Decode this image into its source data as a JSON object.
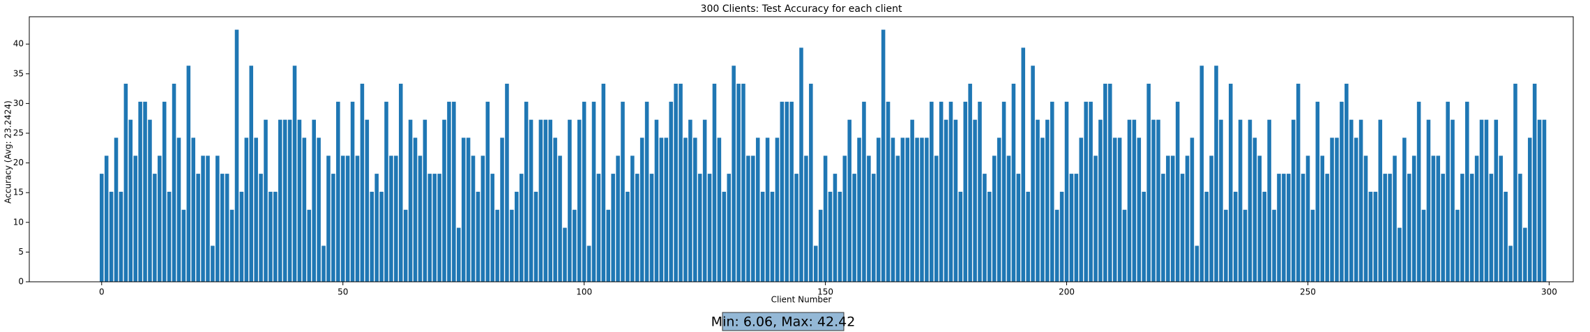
{
  "chart_data": {
    "type": "bar",
    "title": "300 Clients: Test Accuracy for each client",
    "x_label": "Client Number",
    "y_label": "Accuracy (Avg: 23.2424)",
    "annotation": "Min: 6.06, Max: 42.42",
    "color": "#1f77b4",
    "x": [
      0,
      1,
      2,
      3,
      4,
      5,
      6,
      7,
      8,
      9,
      10,
      11,
      12,
      13,
      14,
      15,
      16,
      17,
      18,
      19,
      20,
      21,
      22,
      23,
      24,
      25,
      26,
      27,
      28,
      29,
      30,
      31,
      32,
      33,
      34,
      35,
      36,
      37,
      38,
      39,
      40,
      41,
      42,
      43,
      44,
      45,
      46,
      47,
      48,
      49,
      50,
      51,
      52,
      53,
      54,
      55,
      56,
      57,
      58,
      59,
      60,
      61,
      62,
      63,
      64,
      65,
      66,
      67,
      68,
      69,
      70,
      71,
      72,
      73,
      74,
      75,
      76,
      77,
      78,
      79,
      80,
      81,
      82,
      83,
      84,
      85,
      86,
      87,
      88,
      89,
      90,
      91,
      92,
      93,
      94,
      95,
      96,
      97,
      98,
      99,
      100,
      101,
      102,
      103,
      104,
      105,
      106,
      107,
      108,
      109,
      110,
      111,
      112,
      113,
      114,
      115,
      116,
      117,
      118,
      119,
      120,
      121,
      122,
      123,
      124,
      125,
      126,
      127,
      128,
      129,
      130,
      131,
      132,
      133,
      134,
      135,
      136,
      137,
      138,
      139,
      140,
      141,
      142,
      143,
      144,
      145,
      146,
      147,
      148,
      149,
      150,
      151,
      152,
      153,
      154,
      155,
      156,
      157,
      158,
      159,
      160,
      161,
      162,
      163,
      164,
      165,
      166,
      167,
      168,
      169,
      170,
      171,
      172,
      173,
      174,
      175,
      176,
      177,
      178,
      179,
      180,
      181,
      182,
      183,
      184,
      185,
      186,
      187,
      188,
      189,
      190,
      191,
      192,
      193,
      194,
      195,
      196,
      197,
      198,
      199,
      200,
      201,
      202,
      203,
      204,
      205,
      206,
      207,
      208,
      209,
      210,
      211,
      212,
      213,
      214,
      215,
      216,
      217,
      218,
      219,
      220,
      221,
      222,
      223,
      224,
      225,
      226,
      227,
      228,
      229,
      230,
      231,
      232,
      233,
      234,
      235,
      236,
      237,
      238,
      239,
      240,
      241,
      242,
      243,
      244,
      245,
      246,
      247,
      248,
      249,
      250,
      251,
      252,
      253,
      254,
      255,
      256,
      257,
      258,
      259,
      260,
      261,
      262,
      263,
      264,
      265,
      266,
      267,
      268,
      269,
      270,
      271,
      272,
      273,
      274,
      275,
      276,
      277,
      278,
      279,
      280,
      281,
      282,
      283,
      284,
      285,
      286,
      287,
      288,
      289,
      290,
      291,
      292,
      293,
      294,
      295,
      296,
      297,
      298,
      299
    ],
    "values": [
      18.18,
      21.21,
      15.15,
      24.24,
      15.15,
      33.33,
      27.27,
      21.21,
      30.3,
      30.3,
      27.27,
      18.18,
      21.21,
      30.3,
      15.15,
      33.33,
      24.24,
      12.12,
      36.36,
      24.24,
      18.18,
      21.21,
      21.21,
      6.06,
      21.21,
      18.18,
      18.18,
      12.12,
      42.42,
      15.15,
      24.24,
      36.36,
      24.24,
      18.18,
      27.27,
      15.15,
      15.15,
      27.27,
      27.27,
      27.27,
      36.36,
      27.27,
      24.24,
      12.12,
      27.27,
      24.24,
      6.06,
      21.21,
      18.18,
      30.3,
      21.21,
      21.21,
      30.3,
      21.21,
      33.33,
      27.27,
      15.15,
      18.18,
      15.15,
      30.3,
      21.21,
      21.21,
      33.33,
      12.12,
      27.27,
      24.24,
      21.21,
      27.27,
      18.18,
      18.18,
      18.18,
      27.27,
      30.3,
      30.3,
      9.09,
      24.24,
      24.24,
      21.21,
      15.15,
      21.21,
      30.3,
      18.18,
      12.12,
      24.24,
      33.33,
      12.12,
      15.15,
      18.18,
      30.3,
      27.27,
      15.15,
      27.27,
      27.27,
      27.27,
      24.24,
      21.21,
      9.09,
      27.27,
      12.12,
      27.27,
      30.3,
      6.06,
      30.3,
      18.18,
      33.33,
      12.12,
      18.18,
      21.21,
      30.3,
      15.15,
      21.21,
      18.18,
      24.24,
      30.3,
      18.18,
      27.27,
      24.24,
      24.24,
      30.3,
      33.33,
      33.33,
      24.24,
      27.27,
      24.24,
      18.18,
      27.27,
      18.18,
      33.33,
      24.24,
      15.15,
      18.18,
      36.36,
      33.33,
      33.33,
      21.21,
      21.21,
      24.24,
      15.15,
      24.24,
      15.15,
      24.24,
      30.3,
      30.3,
      30.3,
      18.18,
      39.39,
      21.21,
      33.33,
      6.06,
      12.12,
      21.21,
      15.15,
      18.18,
      15.15,
      21.21,
      27.27,
      18.18,
      24.24,
      30.3,
      21.21,
      18.18,
      24.24,
      42.42,
      30.3,
      24.24,
      21.21,
      24.24,
      24.24,
      27.27,
      24.24,
      24.24,
      24.24,
      30.3,
      21.21,
      30.3,
      27.27,
      30.3,
      27.27,
      15.15,
      30.3,
      33.33,
      27.27,
      30.3,
      18.18,
      15.15,
      21.21,
      24.24,
      30.3,
      21.21,
      33.33,
      18.18,
      39.39,
      15.15,
      36.36,
      27.27,
      24.24,
      27.27,
      30.3,
      12.12,
      15.15,
      30.3,
      18.18,
      18.18,
      24.24,
      30.3,
      30.3,
      21.21,
      27.27,
      33.33,
      33.33,
      24.24,
      24.24,
      12.12,
      27.27,
      27.27,
      24.24,
      15.15,
      33.33,
      27.27,
      27.27,
      18.18,
      21.21,
      21.21,
      30.3,
      18.18,
      21.21,
      24.24,
      6.06,
      36.36,
      15.15,
      21.21,
      36.36,
      27.27,
      12.12,
      33.33,
      15.15,
      27.27,
      12.12,
      27.27,
      24.24,
      21.21,
      15.15,
      27.27,
      12.12,
      18.18,
      18.18,
      18.18,
      27.27,
      33.33,
      18.18,
      21.21,
      12.12,
      30.3,
      21.21,
      18.18,
      24.24,
      24.24,
      30.3,
      33.33,
      27.27,
      24.24,
      27.27,
      21.21,
      15.15,
      15.15,
      27.27,
      18.18,
      18.18,
      21.21,
      9.09,
      24.24,
      18.18,
      21.21,
      30.3,
      12.12,
      27.27,
      21.21,
      21.21,
      18.18,
      30.3,
      27.27,
      12.12,
      18.18,
      30.3,
      18.18,
      21.21,
      27.27,
      27.27,
      18.18,
      27.27,
      21.21,
      15.15,
      6.06,
      33.33,
      18.18,
      9.09,
      24.24,
      33.33,
      27.27,
      27.27
    ],
    "xlim": [
      -15,
      305
    ],
    "xticks": [
      0,
      50,
      100,
      150,
      200,
      250,
      300
    ],
    "ylim": [
      0,
      44.6
    ],
    "yticks": [
      0,
      5,
      10,
      15,
      20,
      25,
      30,
      35,
      40
    ]
  }
}
